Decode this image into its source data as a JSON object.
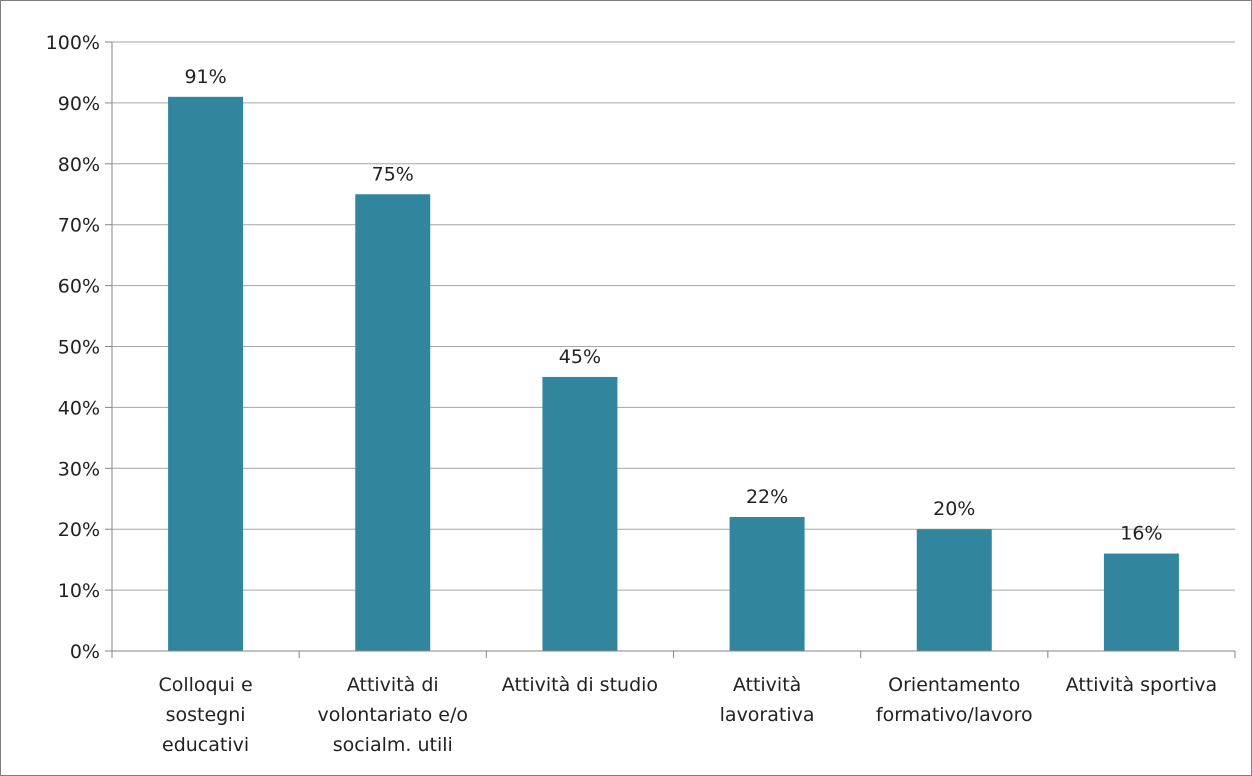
{
  "colors": {
    "bar": "#31859c",
    "grid": "#a6a6a6",
    "axis": "#868686"
  },
  "chart_data": {
    "type": "bar",
    "categories": [
      [
        "Colloqui e",
        "sostegni",
        "educativi"
      ],
      [
        "Attività di",
        "volontariato e/o",
        "socialm. utili"
      ],
      [
        "Attività di studio"
      ],
      [
        "Attività",
        "lavorativa"
      ],
      [
        "Orientamento",
        "formativo/lavoro"
      ],
      [
        "Attività sportiva"
      ]
    ],
    "values": [
      91,
      75,
      45,
      22,
      20,
      16
    ],
    "data_labels": [
      "91%",
      "75%",
      "45%",
      "22%",
      "20%",
      "16%"
    ],
    "ylim": [
      0,
      100
    ],
    "yticks": [
      0,
      10,
      20,
      30,
      40,
      50,
      60,
      70,
      80,
      90,
      100
    ],
    "ytick_labels": [
      "0%",
      "10%",
      "20%",
      "30%",
      "40%",
      "50%",
      "60%",
      "70%",
      "80%",
      "90%",
      "100%"
    ],
    "grid": true,
    "legend": "none"
  }
}
